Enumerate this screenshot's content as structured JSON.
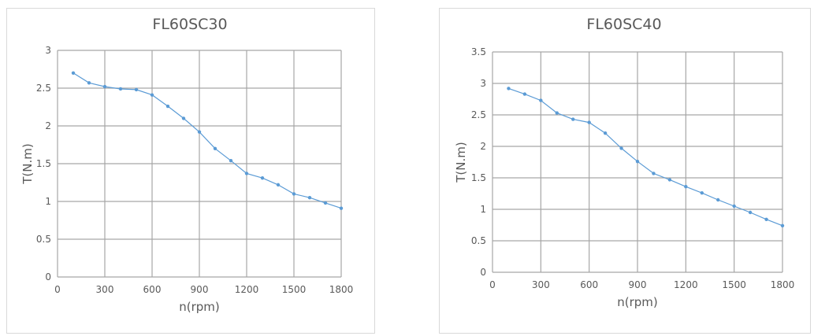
{
  "chart_data": [
    {
      "type": "line",
      "title": "FL60SC30",
      "xlabel": "n(rpm)",
      "ylabel": "T(N.m)",
      "xlim": [
        0,
        1800
      ],
      "ylim": [
        0,
        3
      ],
      "xticks": [
        0,
        300,
        600,
        900,
        1200,
        1500,
        1800
      ],
      "yticks": [
        0,
        0.5,
        1,
        1.5,
        2,
        2.5,
        3
      ],
      "grid": true,
      "line_color": "#5b9bd5",
      "x": [
        100,
        200,
        300,
        400,
        500,
        600,
        700,
        800,
        900,
        1000,
        1100,
        1200,
        1300,
        1400,
        1500,
        1600,
        1700,
        1800
      ],
      "y": [
        2.7,
        2.57,
        2.52,
        2.49,
        2.48,
        2.41,
        2.26,
        2.1,
        1.92,
        1.7,
        1.54,
        1.37,
        1.31,
        1.22,
        1.1,
        1.05,
        0.98,
        0.91
      ]
    },
    {
      "type": "line",
      "title": "FL60SC40",
      "xlabel": "n(rpm)",
      "ylabel": "T(N.m)",
      "xlim": [
        0,
        1800
      ],
      "ylim": [
        0,
        3.5
      ],
      "xticks": [
        0,
        300,
        600,
        900,
        1200,
        1500,
        1800
      ],
      "yticks": [
        0,
        0.5,
        1,
        1.5,
        2,
        2.5,
        3,
        3.5
      ],
      "grid": true,
      "line_color": "#5b9bd5",
      "x": [
        100,
        200,
        300,
        400,
        500,
        600,
        700,
        800,
        900,
        1000,
        1100,
        1200,
        1300,
        1400,
        1500,
        1600,
        1700,
        1800
      ],
      "y": [
        2.92,
        2.83,
        2.73,
        2.53,
        2.43,
        2.38,
        2.21,
        1.97,
        1.76,
        1.57,
        1.47,
        1.36,
        1.26,
        1.15,
        1.05,
        0.95,
        0.84,
        0.74
      ]
    }
  ]
}
